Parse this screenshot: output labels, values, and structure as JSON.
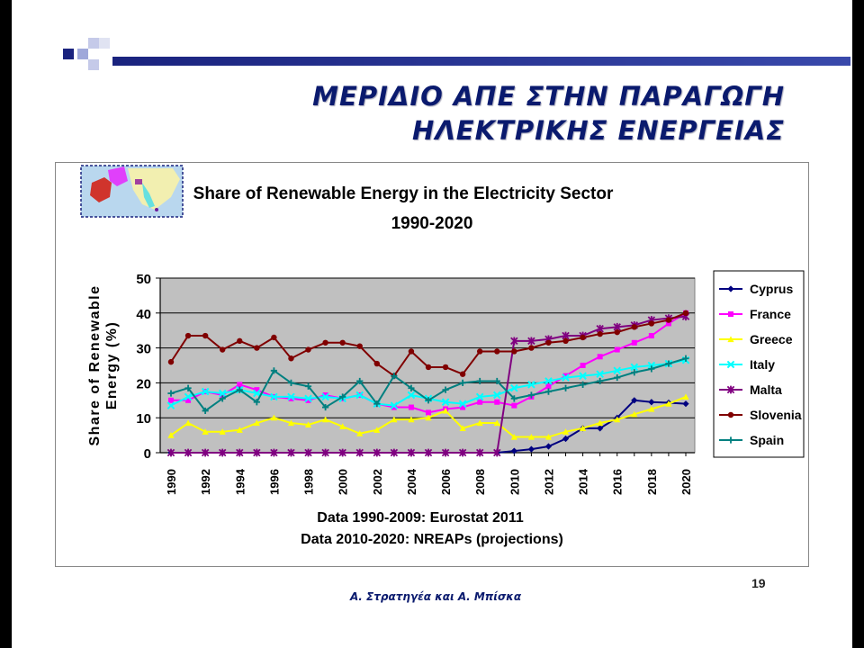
{
  "slide": {
    "title_lines": [
      "ΜΕΡΙΔΙΟ ΑΠΕ ΣΤΗΝ ΠΑΡΑΓΩΓΗ",
      "ΗΛΕΚΤΡΙΚΗΣ ΕΝΕΡΓΕΙΑΣ"
    ],
    "page_number": "19",
    "footer_authors": "Α. Στρατηγέα και Α. Μπίσκα",
    "accent_color": "#1a237e"
  },
  "chart_data": {
    "type": "line",
    "title": [
      "Share of Renewable Energy in the Electricity Sector",
      "1990-2020"
    ],
    "ylabel": [
      "Share of Renewable",
      "Energy (%)"
    ],
    "xlabel": "",
    "notes": [
      "Data 1990-2009: Eurostat 2011",
      "Data 2010-2020: NREAPs (projections)"
    ],
    "ylim": [
      0,
      50
    ],
    "yticks": [
      "0",
      "10",
      "20",
      "30",
      "40",
      "50"
    ],
    "x": [
      1990,
      1991,
      1992,
      1993,
      1994,
      1995,
      1996,
      1997,
      1998,
      1999,
      2000,
      2001,
      2002,
      2003,
      2004,
      2005,
      2006,
      2007,
      2008,
      2009,
      2010,
      2011,
      2012,
      2013,
      2014,
      2015,
      2016,
      2017,
      2018,
      2019,
      2020
    ],
    "xticks": [
      "1990",
      "1992",
      "1994",
      "1996",
      "1998",
      "2000",
      "2002",
      "2004",
      "2006",
      "2008",
      "2010",
      "2012",
      "2014",
      "2016",
      "2018",
      "2020"
    ],
    "plot_background": "#c0c0c0",
    "grid": "horizontal",
    "legend_position": "right",
    "series": [
      {
        "name": "Cyprus",
        "color": "#000080",
        "marker": "diamond",
        "values": [
          0,
          0,
          0,
          0,
          0,
          0,
          0,
          0,
          0,
          0,
          0,
          0,
          0,
          0,
          0,
          0,
          0,
          0,
          0,
          0,
          0.5,
          1,
          1.8,
          4,
          7,
          7,
          10,
          15,
          14.5,
          14.3,
          14
        ]
      },
      {
        "name": "France",
        "color": "#ff00ff",
        "marker": "square",
        "values": [
          15,
          15,
          17.5,
          16.5,
          19.5,
          18,
          16,
          15.5,
          15,
          16.5,
          15.5,
          16.5,
          14,
          13,
          13,
          11.5,
          12.5,
          13,
          14.5,
          14.5,
          13.5,
          16,
          19,
          22,
          25,
          27.5,
          29.5,
          31.5,
          33.5,
          37,
          40
        ]
      },
      {
        "name": "Greece",
        "color": "#ffff00",
        "marker": "triangle",
        "values": [
          5,
          8.5,
          6,
          6,
          6.5,
          8.5,
          10,
          8.5,
          8,
          9.5,
          7.5,
          5.5,
          6.5,
          9.5,
          9.5,
          10,
          12,
          7,
          8.5,
          8.5,
          4.5,
          4.5,
          4.5,
          6,
          7,
          8.5,
          9.5,
          11,
          12.5,
          14,
          16
        ]
      },
      {
        "name": "Italy",
        "color": "#00ffff",
        "marker": "x",
        "values": [
          13.5,
          16,
          17.5,
          17,
          18,
          17,
          16,
          16,
          15.5,
          16,
          15.5,
          16.5,
          14,
          13.5,
          16.5,
          15.5,
          14.5,
          14,
          16,
          16.5,
          18.5,
          19.5,
          20.5,
          21.5,
          22,
          22.5,
          23.5,
          24.5,
          25,
          25.5,
          26.5
        ]
      },
      {
        "name": "Malta",
        "color": "#800080",
        "marker": "star",
        "values": [
          0,
          0,
          0,
          0,
          0,
          0,
          0,
          0,
          0,
          0,
          0,
          0,
          0,
          0,
          0,
          0,
          0,
          0,
          0,
          0,
          32,
          32,
          32.5,
          33.5,
          33.5,
          35.5,
          36,
          36.5,
          38,
          38.5,
          39
        ]
      },
      {
        "name": "Slovenia",
        "color": "#800000",
        "marker": "circle",
        "values": [
          26,
          33.5,
          33.5,
          29.5,
          32,
          30,
          33,
          27,
          29.5,
          31.5,
          31.5,
          30.5,
          25.5,
          22,
          29,
          24.5,
          24.5,
          22.5,
          29,
          29,
          29,
          30,
          31.5,
          32,
          33,
          34,
          34.5,
          36,
          37,
          38,
          40
        ]
      },
      {
        "name": "Spain",
        "color": "#008080",
        "marker": "plus",
        "values": [
          17,
          18.5,
          12,
          15.5,
          18,
          14.5,
          23.5,
          20,
          19,
          13,
          16,
          20.5,
          14,
          22,
          18.5,
          15,
          18,
          20,
          20.5,
          20.5,
          15.5,
          16.5,
          17.5,
          18.5,
          19.5,
          20.5,
          21.5,
          23,
          24,
          25.5,
          27
        ]
      }
    ]
  }
}
